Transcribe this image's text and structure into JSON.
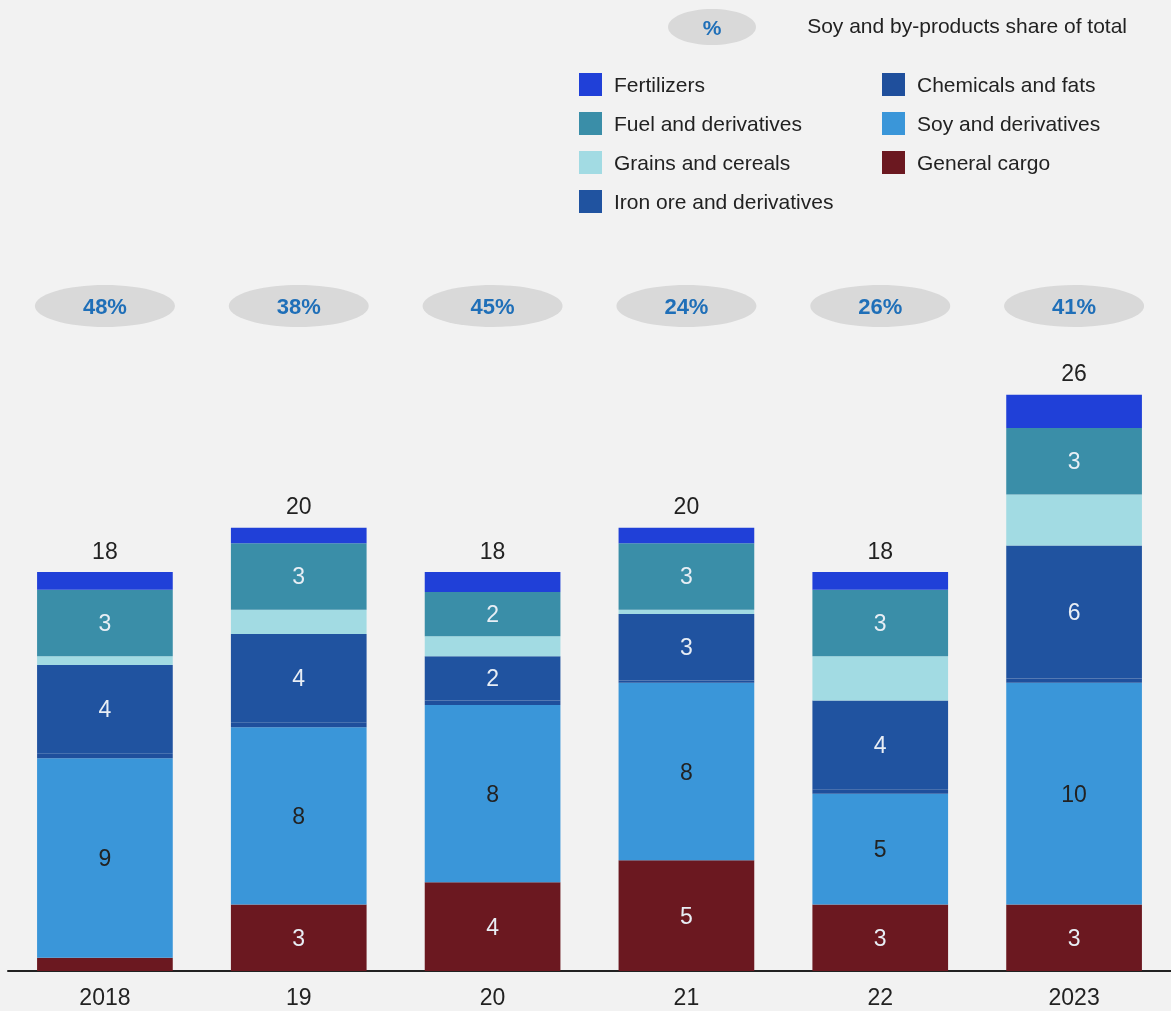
{
  "chart_data": {
    "type": "bar",
    "stacked": true,
    "legend": "top right",
    "categories": [
      "2018",
      "19",
      "20",
      "21",
      "22",
      "2023"
    ],
    "series": [
      {
        "name": "General cargo",
        "color": "#6b1820",
        "values": [
          0.6,
          3,
          4,
          5,
          3,
          3
        ],
        "value_labels": [
          null,
          "3",
          "4",
          "5",
          "3",
          "3"
        ]
      },
      {
        "name": "Soy and derivatives",
        "color": "#3a96d9",
        "values": [
          9,
          8,
          8,
          8,
          5,
          10
        ],
        "value_labels": [
          "9",
          "8",
          "8",
          "8",
          "5",
          "10"
        ]
      },
      {
        "name": "Chemicals and fats",
        "color": "#1f4f9c",
        "values": [
          0.2,
          0.2,
          0.2,
          0.1,
          0.2,
          0.2
        ],
        "value_labels": [
          null,
          null,
          null,
          null,
          null,
          null
        ]
      },
      {
        "name": "Iron ore and derivatives",
        "color": "#2053a0",
        "values": [
          4,
          4,
          2,
          3,
          4,
          6
        ],
        "value_labels": [
          "4",
          "4",
          "2",
          "3",
          "4",
          "6"
        ]
      },
      {
        "name": "Grains and cereals",
        "color": "#a2dbe3",
        "values": [
          0.4,
          1.1,
          0.9,
          0.2,
          2.0,
          2.3
        ],
        "value_labels": [
          null,
          null,
          null,
          null,
          null,
          null
        ]
      },
      {
        "name": "Fuel and derivatives",
        "color": "#3a8ea8",
        "values": [
          3,
          3,
          2,
          3,
          3,
          3
        ],
        "value_labels": [
          "3",
          "3",
          "2",
          "3",
          "3",
          "3"
        ]
      },
      {
        "name": "Fertilizers",
        "color": "#2040d8",
        "values": [
          0.8,
          0.7,
          0.9,
          0.7,
          0.8,
          1.5
        ],
        "value_labels": [
          null,
          null,
          null,
          null,
          null,
          null
        ]
      }
    ],
    "totals": [
      "18",
      "20",
      "18",
      "20",
      "18",
      "26"
    ],
    "annotations": [
      "%",
      "Soy and by-products share of total",
      "48%",
      "38%",
      "45%",
      "24%",
      "26%",
      "41%"
    ]
  }
}
